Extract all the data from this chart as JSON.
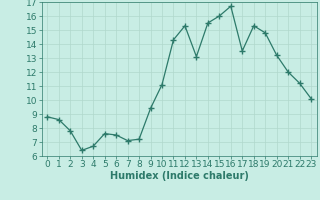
{
  "x": [
    0,
    1,
    2,
    3,
    4,
    5,
    6,
    7,
    8,
    9,
    10,
    11,
    12,
    13,
    14,
    15,
    16,
    17,
    18,
    19,
    20,
    21,
    22,
    23
  ],
  "y": [
    8.8,
    8.6,
    7.8,
    6.4,
    6.7,
    7.6,
    7.5,
    7.1,
    7.2,
    9.4,
    11.1,
    14.3,
    15.3,
    13.1,
    15.5,
    16.0,
    16.7,
    13.5,
    15.3,
    14.8,
    13.2,
    12.0,
    11.2,
    10.1
  ],
  "line_color": "#2d7a6a",
  "marker": "+",
  "marker_size": 4,
  "bg_color": "#c8ede4",
  "grid_color": "#b0d8cc",
  "xlabel": "Humidex (Indice chaleur)",
  "ylim": [
    6,
    17
  ],
  "xlim": [
    -0.5,
    23.5
  ],
  "yticks": [
    6,
    7,
    8,
    9,
    10,
    11,
    12,
    13,
    14,
    15,
    16,
    17
  ],
  "xticks": [
    0,
    1,
    2,
    3,
    4,
    5,
    6,
    7,
    8,
    9,
    10,
    11,
    12,
    13,
    14,
    15,
    16,
    17,
    18,
    19,
    20,
    21,
    22,
    23
  ],
  "tick_color": "#2d7a6a",
  "label_color": "#2d7a6a",
  "xlabel_fontsize": 7,
  "tick_fontsize": 6.5
}
